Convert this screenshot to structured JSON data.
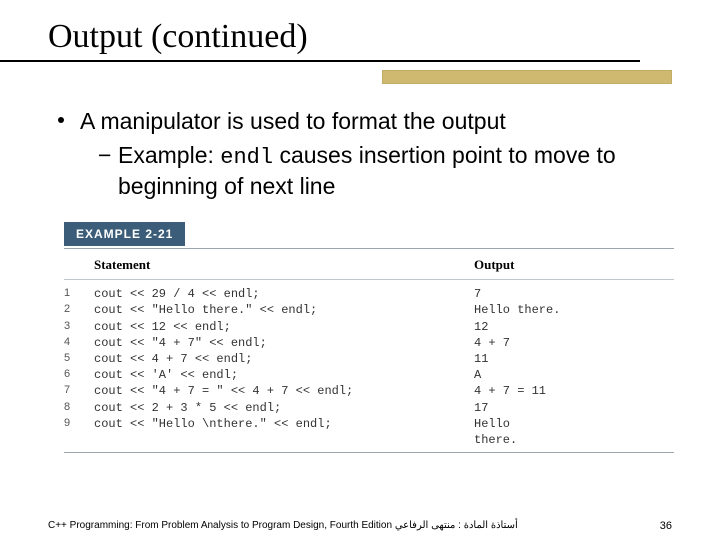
{
  "slide": {
    "title": "Output (continued)",
    "accent_color": "#cfb870",
    "bullets": {
      "l1": "A manipulator is used to format the output",
      "l2_prefix": "Example: ",
      "l2_code": "endl",
      "l2_suffix": " causes insertion point to move to beginning of next line"
    },
    "example": {
      "label": "EXAMPLE 2-21",
      "head_statement": "Statement",
      "head_output": "Output",
      "rows": [
        {
          "n": "1",
          "stmt": "cout << 29 / 4 << endl;",
          "out": "7"
        },
        {
          "n": "2",
          "stmt": "cout << \"Hello there.\" << endl;",
          "out": "Hello there."
        },
        {
          "n": "3",
          "stmt": "cout << 12 << endl;",
          "out": "12"
        },
        {
          "n": "4",
          "stmt": "cout << \"4 + 7\" << endl;",
          "out": "4 + 7"
        },
        {
          "n": "5",
          "stmt": "cout << 4 + 7 << endl;",
          "out": "11"
        },
        {
          "n": "6",
          "stmt": "cout << 'A' << endl;",
          "out": "A"
        },
        {
          "n": "7",
          "stmt": "cout << \"4 + 7 = \" << 4 + 7 << endl;",
          "out": "4 + 7 = 11"
        },
        {
          "n": "8",
          "stmt": "cout << 2 + 3 * 5 << endl;",
          "out": "17"
        },
        {
          "n": "9",
          "stmt": "cout << \"Hello \\nthere.\" << endl;",
          "out": "Hello\nthere."
        }
      ]
    },
    "footer_left": "C++ Programming: From Problem Analysis to Program Design, Fourth Edition أستاذة المادة : منتهى الرفاعي",
    "footer_page": "36"
  }
}
